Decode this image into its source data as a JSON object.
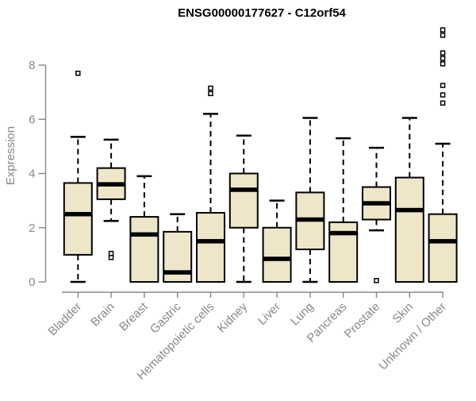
{
  "chart_data": {
    "type": "boxplot",
    "title": "ENSG00000177627 - C12orf54",
    "xlabel": "",
    "ylabel": "Expression",
    "ylim": [
      0,
      8
    ],
    "yticks": [
      0,
      2,
      4,
      6,
      8
    ],
    "grid": false,
    "legend": null,
    "colors": {
      "box_fill": "#EDE6C8",
      "box_stroke": "#000000",
      "median": "#000000",
      "whisker": "#000000",
      "outlier": "#000000",
      "axis": "#878787",
      "tick_label": "#878787",
      "title": "#000000"
    },
    "categories": [
      "Bladder",
      "Brain",
      "Breast",
      "Gastric",
      "Hematopoietic cells",
      "Kidney",
      "Liver",
      "Lung",
      "Pancreas",
      "Prostate",
      "Skin",
      "Unknown / Other"
    ],
    "series": [
      {
        "name": "Bladder",
        "whisker_low": 0,
        "q1": 1.0,
        "median": 2.5,
        "q3": 3.65,
        "whisker_high": 5.35,
        "outliers": [
          7.7
        ]
      },
      {
        "name": "Brain",
        "whisker_low": 2.25,
        "q1": 3.05,
        "median": 3.6,
        "q3": 4.2,
        "whisker_high": 5.25,
        "outliers": [
          0.9,
          1.05
        ]
      },
      {
        "name": "Breast",
        "whisker_low": 0,
        "q1": 0,
        "median": 1.75,
        "q3": 2.4,
        "whisker_high": 3.9,
        "outliers": []
      },
      {
        "name": "Gastric",
        "whisker_low": 0,
        "q1": 0,
        "median": 0.35,
        "q3": 1.85,
        "whisker_high": 2.5,
        "outliers": []
      },
      {
        "name": "Hematopoietic cells",
        "whisker_low": 0,
        "q1": 0,
        "median": 1.5,
        "q3": 2.55,
        "whisker_high": 6.2,
        "outliers": [
          6.95,
          7.15
        ]
      },
      {
        "name": "Kidney",
        "whisker_low": 0,
        "q1": 2.0,
        "median": 3.4,
        "q3": 4.0,
        "whisker_high": 5.4,
        "outliers": []
      },
      {
        "name": "Liver",
        "whisker_low": 0,
        "q1": 0,
        "median": 0.85,
        "q3": 2.0,
        "whisker_high": 3.0,
        "outliers": []
      },
      {
        "name": "Lung",
        "whisker_low": 0,
        "q1": 1.2,
        "median": 2.3,
        "q3": 3.3,
        "whisker_high": 6.05,
        "outliers": []
      },
      {
        "name": "Pancreas",
        "whisker_low": 0,
        "q1": 0,
        "median": 1.8,
        "q3": 2.2,
        "whisker_high": 5.3,
        "outliers": []
      },
      {
        "name": "Prostate",
        "whisker_low": 1.9,
        "q1": 2.3,
        "median": 2.9,
        "q3": 3.5,
        "whisker_high": 4.95,
        "outliers": [
          0.05
        ]
      },
      {
        "name": "Skin",
        "whisker_low": 0,
        "q1": 0,
        "median": 2.65,
        "q3": 3.85,
        "whisker_high": 6.05,
        "outliers": []
      },
      {
        "name": "Unknown / Other",
        "whisker_low": 0,
        "q1": 0,
        "median": 1.5,
        "q3": 2.5,
        "whisker_high": 5.1,
        "outliers": [
          6.6,
          6.9,
          7.25,
          8.05,
          8.25,
          8.45,
          9.1,
          9.3
        ]
      }
    ]
  }
}
